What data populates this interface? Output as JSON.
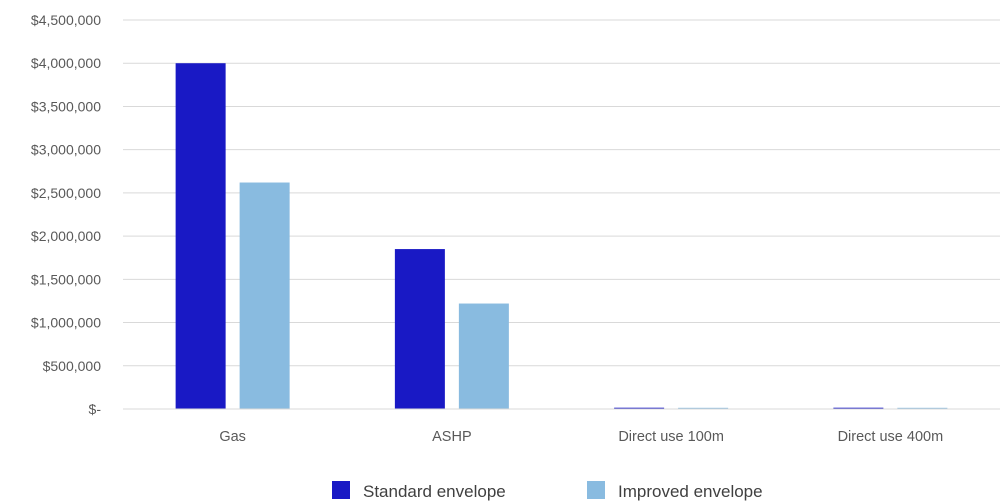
{
  "chart_data": {
    "type": "bar",
    "title": "",
    "xlabel": "",
    "ylabel": "",
    "categories": [
      "Gas",
      "ASHP",
      "Direct use 100m",
      "Direct use 400m"
    ],
    "series": [
      {
        "name": "Standard envelope",
        "color": "#1919c5",
        "values": [
          4000000,
          1850000,
          15000,
          15000
        ]
      },
      {
        "name": "Improved envelope",
        "color": "#89bbe0",
        "values": [
          2620000,
          1220000,
          10000,
          10000
        ]
      }
    ],
    "ylim": [
      0,
      4500000
    ],
    "yticks": [
      0,
      500000,
      1000000,
      1500000,
      2000000,
      2500000,
      3000000,
      3500000,
      4000000,
      4500000
    ],
    "ytick_labels": [
      "$-",
      "$500,000",
      "$1,000,000",
      "$1,500,000",
      "$2,000,000",
      "$2,500,000",
      "$3,000,000",
      "$3,500,000",
      "$4,000,000",
      "$4,500,000"
    ],
    "grid": true,
    "legend_position": "bottom"
  }
}
